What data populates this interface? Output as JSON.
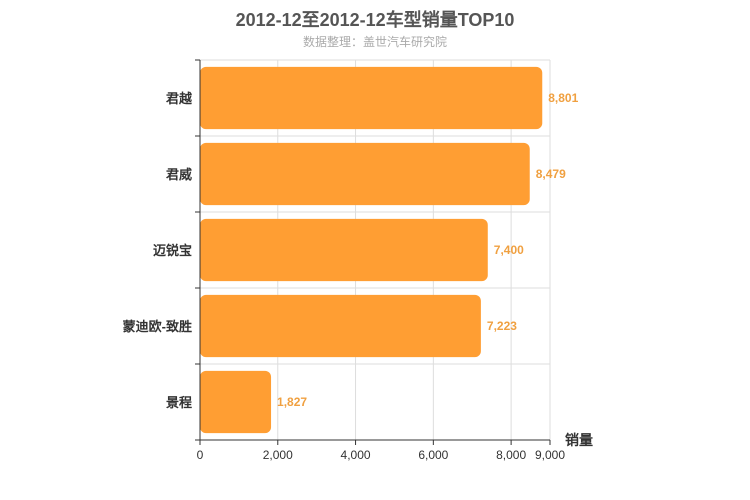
{
  "title": "2012-12至2012-12车型销量TOP10",
  "subtitle": "数据整理：盖世汽车研究院",
  "chart_data": {
    "type": "bar",
    "orientation": "horizontal",
    "categories": [
      "君越",
      "君威",
      "迈锐宝",
      "蒙迪欧-致胜",
      "景程"
    ],
    "values": [
      8801,
      8479,
      7400,
      7223,
      1827
    ],
    "value_labels": [
      "8,801",
      "8,479",
      "7,400",
      "7,223",
      "1,827"
    ],
    "xlabel": "销量",
    "ylabel": "",
    "xlim": [
      0,
      9000
    ],
    "ticks": [
      0,
      2000,
      4000,
      6000,
      8000,
      9000
    ],
    "tick_labels": [
      "0",
      "2,000",
      "4,000",
      "6,000",
      "8,000",
      "9,000"
    ],
    "grid": true,
    "bar_color": "#ff9e33",
    "label_color": "#f0a040"
  }
}
